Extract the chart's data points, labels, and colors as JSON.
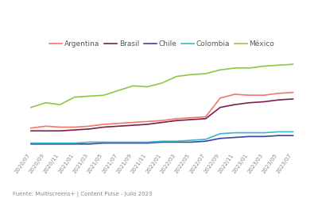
{
  "subtitle": "Fuente: Multiscreens+ | Content Pulse - Julio 2023",
  "x_labels": [
    "2020/07",
    "2020/09",
    "2020/11",
    "2021/01",
    "2021/03",
    "2021/05",
    "2021/07",
    "2021/09",
    "2021/11",
    "2022/01",
    "2022/03",
    "2022/05",
    "2022/07",
    "2022/09",
    "2022/11",
    "2023/01",
    "2023/03",
    "2023/05",
    "2023/07"
  ],
  "series": {
    "Argentina": {
      "color": "#f4776a",
      "values": [
        0.3,
        0.32,
        0.31,
        0.31,
        0.32,
        0.34,
        0.35,
        0.36,
        0.37,
        0.38,
        0.4,
        0.41,
        0.42,
        0.62,
        0.66,
        0.65,
        0.65,
        0.67,
        0.68
      ]
    },
    "Brasil": {
      "color": "#7b1f4e",
      "values": [
        0.27,
        0.27,
        0.27,
        0.28,
        0.29,
        0.31,
        0.32,
        0.33,
        0.34,
        0.36,
        0.38,
        0.39,
        0.4,
        0.52,
        0.55,
        0.57,
        0.58,
        0.6,
        0.61
      ]
    },
    "Chile": {
      "color": "#4040a0",
      "values": [
        0.13,
        0.13,
        0.13,
        0.13,
        0.13,
        0.14,
        0.14,
        0.14,
        0.14,
        0.15,
        0.15,
        0.15,
        0.16,
        0.19,
        0.2,
        0.21,
        0.21,
        0.22,
        0.22
      ]
    },
    "Colombia": {
      "color": "#3ab8c8",
      "values": [
        0.14,
        0.14,
        0.14,
        0.14,
        0.15,
        0.15,
        0.15,
        0.15,
        0.15,
        0.16,
        0.16,
        0.17,
        0.18,
        0.24,
        0.25,
        0.25,
        0.25,
        0.26,
        0.26
      ]
    },
    "México": {
      "color": "#90c840",
      "values": [
        0.52,
        0.57,
        0.55,
        0.63,
        0.64,
        0.65,
        0.7,
        0.75,
        0.74,
        0.78,
        0.85,
        0.87,
        0.88,
        0.92,
        0.94,
        0.94,
        0.96,
        0.97,
        0.98
      ]
    }
  },
  "background_color": "#ffffff",
  "grid_color": "#d8d8d8",
  "tick_label_fontsize": 5.0,
  "legend_fontsize": 6.5,
  "subtitle_fontsize": 5.0
}
